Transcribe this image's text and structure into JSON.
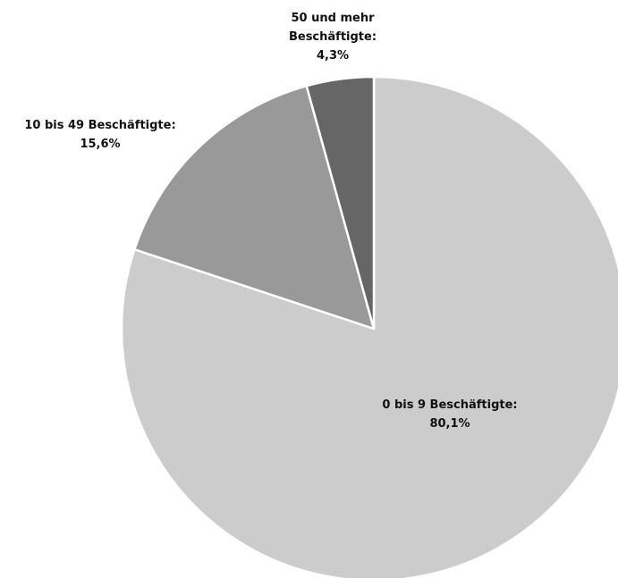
{
  "chart_data": {
    "type": "pie",
    "categories": [
      "0 bis 9 Beschäftigte:",
      "10 bis 49 Beschäftigte:",
      "50 und mehr Beschäftigte:"
    ],
    "values": [
      80.1,
      15.6,
      4.3
    ],
    "value_labels": [
      "80,1%",
      "15,6%",
      "4,3%"
    ],
    "colors": [
      "#cccccc",
      "#999999",
      "#666666"
    ]
  }
}
